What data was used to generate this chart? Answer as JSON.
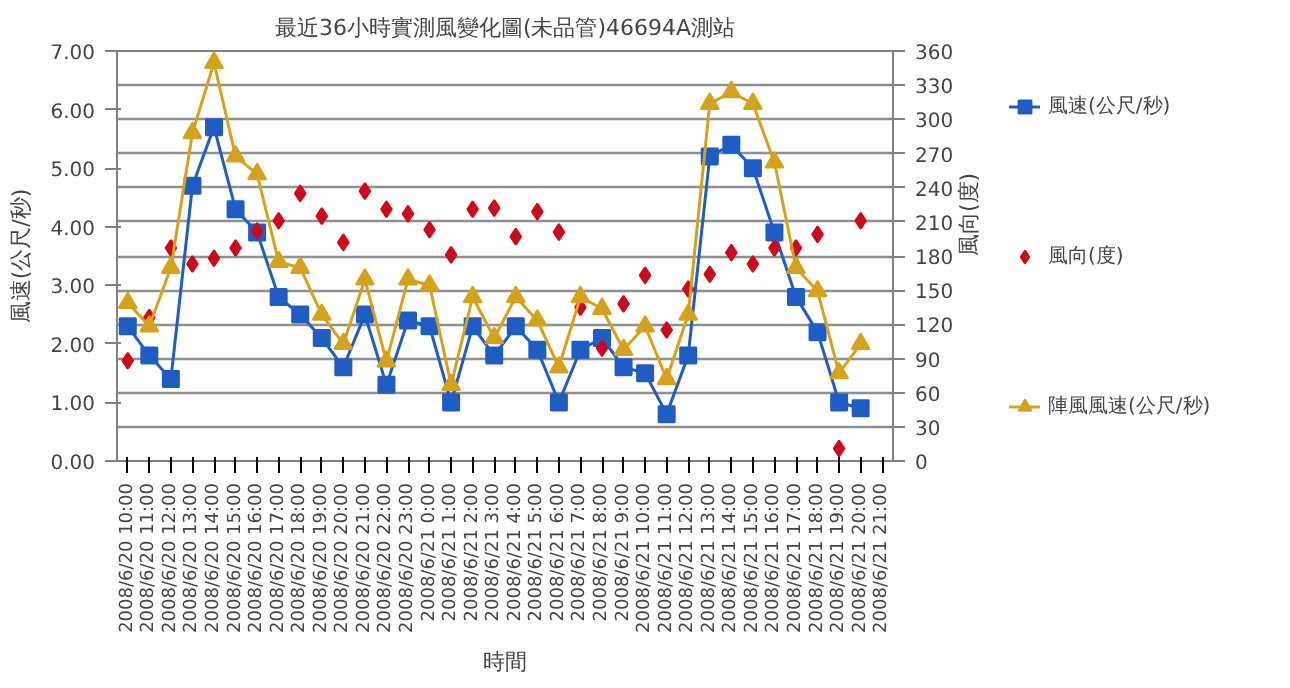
{
  "chart_data": {
    "type": "line",
    "title": "最近36小時實測風變化圖(未品管)46694A測站",
    "xlabel": "時間",
    "ylabel": "風速(公尺/秒)",
    "y2label": "風向(度)",
    "categories": [
      "2008/6/20 10:00",
      "2008/6/20 11:00",
      "2008/6/20 12:00",
      "2008/6/20 13:00",
      "2008/6/20 14:00",
      "2008/6/20 15:00",
      "2008/6/20 16:00",
      "2008/6/20 17:00",
      "2008/6/20 18:00",
      "2008/6/20 19:00",
      "2008/6/20 20:00",
      "2008/6/20 21:00",
      "2008/6/20 22:00",
      "2008/6/20 23:00",
      "2008/6/21 0:00",
      "2008/6/21 1:00",
      "2008/6/21 2:00",
      "2008/6/21 3:00",
      "2008/6/21 4:00",
      "2008/6/21 5:00",
      "2008/6/21 6:00",
      "2008/6/21 7:00",
      "2008/6/21 8:00",
      "2008/6/21 9:00",
      "2008/6/21 10:00",
      "2008/6/21 11:00",
      "2008/6/21 12:00",
      "2008/6/21 13:00",
      "2008/6/21 14:00",
      "2008/6/21 15:00",
      "2008/6/21 16:00",
      "2008/6/21 17:00",
      "2008/6/21 18:00",
      "2008/6/21 19:00",
      "2008/6/21 20:00",
      "2008/6/21 21:00"
    ],
    "series": [
      {
        "name": "風速(公尺/秒)",
        "marker": "square",
        "color": "#1f5cc4",
        "values": [
          2.3,
          1.8,
          1.4,
          4.7,
          5.7,
          4.3,
          3.9,
          2.8,
          2.5,
          2.1,
          1.6,
          2.5,
          1.3,
          2.4,
          2.3,
          1.0,
          2.3,
          1.8,
          2.3,
          1.9,
          1.0,
          1.9,
          2.1,
          1.6,
          1.5,
          0.8,
          1.8,
          5.2,
          5.4,
          5.0,
          3.9,
          2.8,
          2.2,
          1.0,
          0.9,
          null
        ]
      },
      {
        "name": "風向(度)",
        "type": "scatter",
        "marker": "diamond",
        "axis": "y2",
        "color": "#cc0a1e",
        "values": [
          88,
          126,
          187,
          173,
          178,
          187,
          202,
          211,
          235,
          215,
          192,
          237,
          221,
          217,
          203,
          181,
          221,
          222,
          197,
          219,
          201,
          135,
          99,
          138,
          163,
          115,
          151,
          164,
          183,
          173,
          187,
          187,
          199,
          11,
          211,
          null
        ]
      },
      {
        "name": "陣風風速(公尺/秒)",
        "marker": "triangle",
        "color": "#d4a21c",
        "values": [
          2.7,
          2.3,
          3.3,
          5.6,
          6.8,
          5.2,
          4.9,
          3.4,
          3.3,
          2.5,
          2.0,
          3.1,
          1.7,
          3.1,
          3.0,
          1.3,
          2.8,
          2.1,
          2.8,
          2.4,
          1.6,
          2.8,
          2.6,
          1.9,
          2.3,
          1.4,
          2.5,
          6.1,
          6.3,
          6.1,
          5.1,
          3.3,
          2.9,
          1.5,
          2.0,
          null
        ]
      }
    ],
    "ylim": [
      0,
      7
    ],
    "yticks": [
      {
        "value": 0,
        "label": "0.00"
      },
      {
        "value": 1,
        "label": "1.00"
      },
      {
        "value": 2,
        "label": "2.00"
      },
      {
        "value": 3,
        "label": "3.00"
      },
      {
        "value": 4,
        "label": "4.00"
      },
      {
        "value": 5,
        "label": "5.00"
      },
      {
        "value": 6,
        "label": "6.00"
      },
      {
        "value": 7,
        "label": "7.00"
      }
    ],
    "y2lim": [
      0,
      360
    ],
    "y2ticks": [
      0,
      30,
      60,
      90,
      120,
      150,
      180,
      210,
      240,
      270,
      300,
      330,
      360
    ],
    "grid": "y2",
    "legend": "right"
  }
}
